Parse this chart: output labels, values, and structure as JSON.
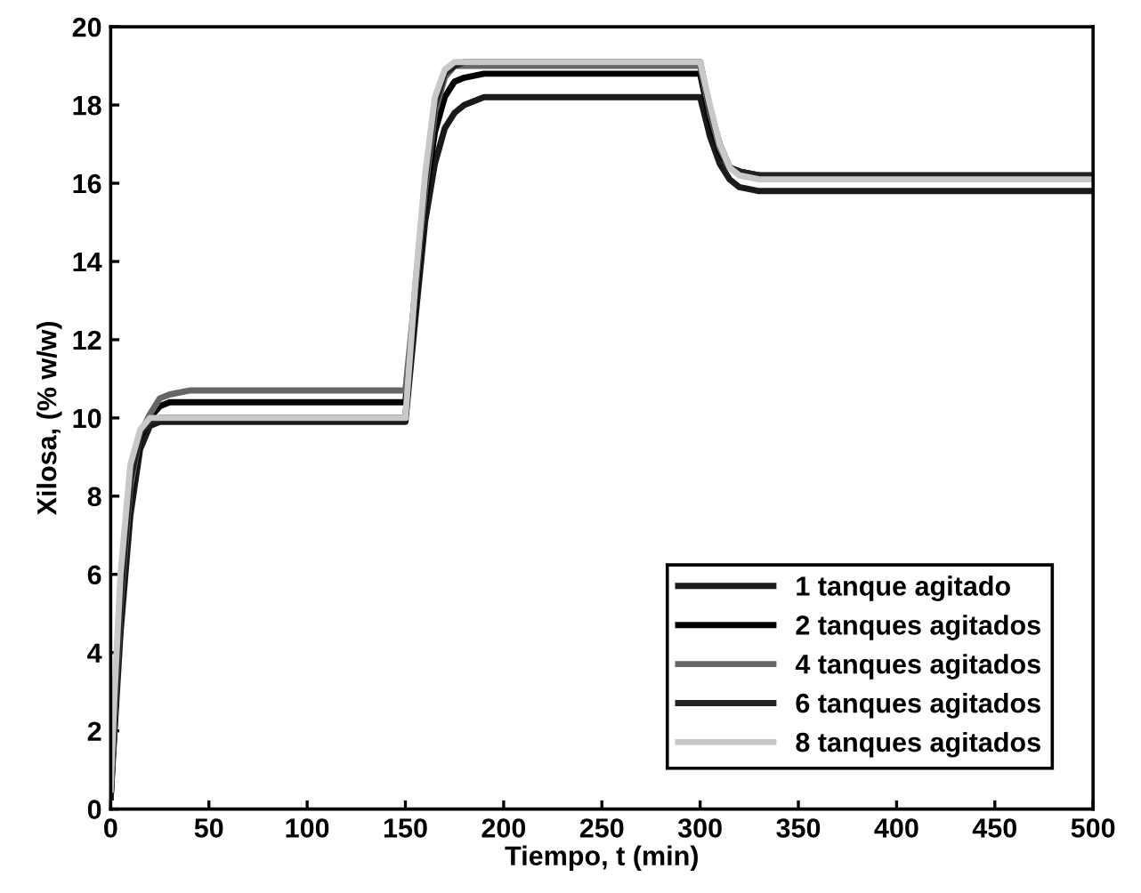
{
  "chart_data": {
    "type": "line",
    "xlabel": "Tiempo, t (min)",
    "ylabel": "Xilosa, (% w/w)",
    "x": [
      0,
      2,
      5,
      10,
      15,
      20,
      25,
      30,
      40,
      50,
      150,
      155,
      160,
      165,
      170,
      175,
      180,
      190,
      200,
      300,
      305,
      310,
      315,
      320,
      330,
      500
    ],
    "xlim": [
      0,
      500
    ],
    "xticks": [
      0,
      50,
      100,
      150,
      200,
      250,
      300,
      350,
      400,
      450,
      500
    ],
    "ylim": [
      0,
      20
    ],
    "yticks": [
      0,
      2,
      4,
      6,
      8,
      10,
      12,
      14,
      16,
      18,
      20
    ],
    "grid": false,
    "legend": "bottom right",
    "marker": "none",
    "line_style": "solid",
    "series": [
      {
        "name": "1 tanque agitado",
        "color": "#1a1a1a",
        "values": [
          0.3,
          2,
          4.5,
          7.5,
          9.2,
          9.8,
          9.9,
          9.9,
          9.9,
          9.9,
          9.9,
          12.5,
          15,
          16.5,
          17.4,
          17.8,
          18.0,
          18.2,
          18.2,
          18.2,
          17.2,
          16.5,
          16.1,
          15.9,
          15.8,
          15.8
        ]
      },
      {
        "name": "2 tanques agitados",
        "color": "#000000",
        "values": [
          0.3,
          2.2,
          5,
          8,
          9.5,
          10.0,
          10.3,
          10.4,
          10.4,
          10.4,
          10.4,
          13,
          15.5,
          17.3,
          18.2,
          18.6,
          18.7,
          18.8,
          18.8,
          18.8,
          17.6,
          16.8,
          16.4,
          16.3,
          16.2,
          16.2
        ]
      },
      {
        "name": "4 tanques agitados",
        "color": "#666666",
        "values": [
          0.3,
          2.3,
          5.2,
          8.2,
          9.6,
          10.1,
          10.5,
          10.6,
          10.7,
          10.7,
          10.7,
          13.2,
          15.8,
          17.8,
          18.7,
          19.0,
          19.0,
          19.0,
          19.0,
          19.0,
          17.8,
          16.9,
          16.4,
          16.3,
          16.2,
          16.2
        ]
      },
      {
        "name": "6 tanques agitados",
        "color": "#222222",
        "values": [
          0.3,
          2.4,
          5.4,
          8.4,
          9.6,
          9.9,
          10.0,
          10.0,
          10.0,
          10.0,
          10.0,
          13.3,
          16,
          18,
          18.8,
          19.0,
          19.1,
          19.1,
          19.1,
          19.1,
          17.9,
          17.0,
          16.4,
          16.3,
          16.2,
          16.2
        ]
      },
      {
        "name": "8 tanques agitados",
        "color": "#c8c8c8",
        "values": [
          0.5,
          3,
          6,
          8.8,
          9.7,
          10.0,
          10.0,
          10.0,
          10.0,
          10.0,
          10.0,
          13.4,
          16.2,
          18.2,
          18.9,
          19.1,
          19.1,
          19.1,
          19.1,
          19.1,
          18.0,
          17.0,
          16.4,
          16.2,
          16.1,
          16.1
        ]
      }
    ]
  }
}
